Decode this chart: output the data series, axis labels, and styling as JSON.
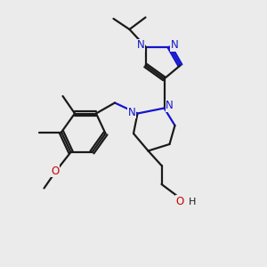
{
  "bg_color": "#ebebeb",
  "bond_color": "#1a1a1a",
  "nitrogen_color": "#1414cc",
  "oxygen_color": "#cc0000",
  "line_width": 1.6,
  "figsize": [
    3.0,
    3.0
  ],
  "dpi": 100,
  "xlim": [
    0,
    10
  ],
  "ylim": [
    0,
    10
  ]
}
